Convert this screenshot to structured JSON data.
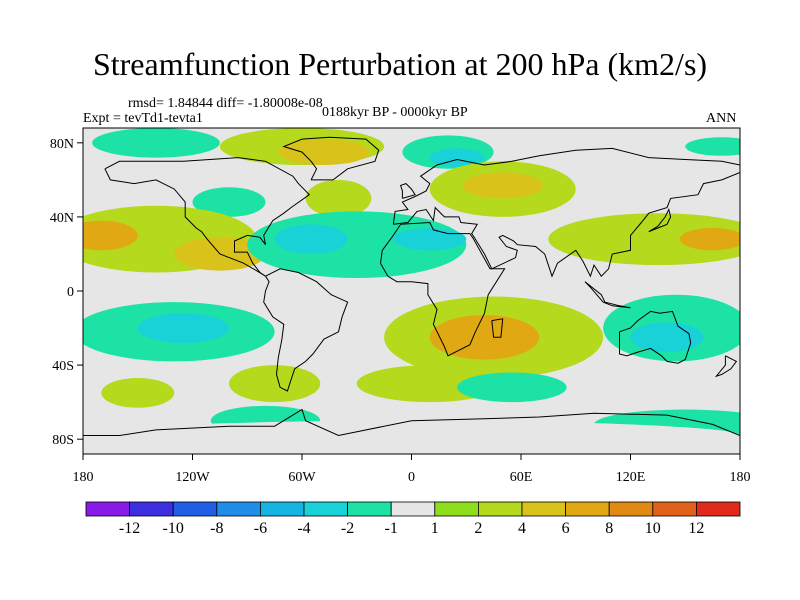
{
  "title": "Streamfunction Perturbation at 200 hPa (km2/s)",
  "stats_line": "rmsd= 1.84844 diff= -1.80008e-08",
  "experiment_line": "Expt = tevTd1-tevta1",
  "period_line": "0188kyr BP - 0000kyr BP",
  "season_label": "ANN",
  "lat_ticks": [
    {
      "label": "80N",
      "value": 80
    },
    {
      "label": "40N",
      "value": 40
    },
    {
      "label": "0",
      "value": 0
    },
    {
      "label": "40S",
      "value": -40
    },
    {
      "label": "80S",
      "value": -80
    }
  ],
  "lon_ticks": [
    {
      "label": "180",
      "value": -180
    },
    {
      "label": "120W",
      "value": -120
    },
    {
      "label": "60W",
      "value": -60
    },
    {
      "label": "0",
      "value": 0
    },
    {
      "label": "60E",
      "value": 60
    },
    {
      "label": "120E",
      "value": 120
    },
    {
      "label": "180",
      "value": 180
    }
  ],
  "colorbar": {
    "colors": [
      "#8a1ae6",
      "#3b2fe0",
      "#1e5fe6",
      "#1e8ee8",
      "#15b4e2",
      "#19d2d8",
      "#1de2a6",
      "#e6e6e6",
      "#8fde1d",
      "#b5d91c",
      "#d9c21a",
      "#e0a914",
      "#e08a14",
      "#e0621a",
      "#e02a1a"
    ],
    "labels": [
      "-12",
      "-10",
      "-8",
      "-6",
      "-4",
      "-2",
      "-1",
      "1",
      "2",
      "4",
      "6",
      "8",
      "10",
      "12"
    ]
  },
  "map_field": {
    "background_value": 0,
    "blobs": [
      {
        "lon": -140,
        "lat": 80,
        "rlon": 35,
        "rlat": 8,
        "value": -2
      },
      {
        "lon": -60,
        "lat": 78,
        "rlon": 45,
        "rlat": 10,
        "value": 2
      },
      {
        "lon": -48,
        "lat": 75,
        "rlon": 25,
        "rlat": 7,
        "value": 4
      },
      {
        "lon": 20,
        "lat": 75,
        "rlon": 25,
        "rlat": 9,
        "value": -2
      },
      {
        "lon": 25,
        "lat": 72,
        "rlon": 15,
        "rlat": 5,
        "value": -4
      },
      {
        "lon": 50,
        "lat": 55,
        "rlon": 40,
        "rlat": 15,
        "value": 2
      },
      {
        "lon": 50,
        "lat": 57,
        "rlon": 22,
        "rlat": 7,
        "value": 4
      },
      {
        "lon": -40,
        "lat": 50,
        "rlon": 18,
        "rlat": 10,
        "value": 2
      },
      {
        "lon": -100,
        "lat": 48,
        "rlon": 20,
        "rlat": 8,
        "value": -2
      },
      {
        "lon": 170,
        "lat": 78,
        "rlon": 20,
        "rlat": 5,
        "value": -2
      },
      {
        "lon": -140,
        "lat": 28,
        "rlon": 55,
        "rlat": 18,
        "value": 2
      },
      {
        "lon": -170,
        "lat": 30,
        "rlon": 20,
        "rlat": 8,
        "value": 6
      },
      {
        "lon": -105,
        "lat": 20,
        "rlon": 25,
        "rlat": 9,
        "value": 4
      },
      {
        "lon": -30,
        "lat": 25,
        "rlon": 60,
        "rlat": 18,
        "value": -2
      },
      {
        "lon": -55,
        "lat": 28,
        "rlon": 20,
        "rlat": 8,
        "value": -4
      },
      {
        "lon": 10,
        "lat": 28,
        "rlon": 20,
        "rlat": 6,
        "value": -4
      },
      {
        "lon": 135,
        "lat": 28,
        "rlon": 60,
        "rlat": 14,
        "value": 2
      },
      {
        "lon": 165,
        "lat": 28,
        "rlon": 18,
        "rlat": 6,
        "value": 6
      },
      {
        "lon": -130,
        "lat": -22,
        "rlon": 55,
        "rlat": 16,
        "value": -2
      },
      {
        "lon": -125,
        "lat": -20,
        "rlon": 25,
        "rlat": 8,
        "value": -4
      },
      {
        "lon": -150,
        "lat": -55,
        "rlon": 20,
        "rlat": 8,
        "value": 2
      },
      {
        "lon": -75,
        "lat": -50,
        "rlon": 25,
        "rlat": 10,
        "value": 2
      },
      {
        "lon": -80,
        "lat": -70,
        "rlon": 30,
        "rlat": 8,
        "value": -2
      },
      {
        "lon": 45,
        "lat": -25,
        "rlon": 60,
        "rlat": 22,
        "value": 2
      },
      {
        "lon": 40,
        "lat": -25,
        "rlon": 30,
        "rlat": 12,
        "value": 6
      },
      {
        "lon": 10,
        "lat": -50,
        "rlon": 40,
        "rlat": 10,
        "value": 2
      },
      {
        "lon": 55,
        "lat": -52,
        "rlon": 30,
        "rlat": 8,
        "value": -2
      },
      {
        "lon": 145,
        "lat": -20,
        "rlon": 40,
        "rlat": 18,
        "value": -2
      },
      {
        "lon": 140,
        "lat": -25,
        "rlon": 20,
        "rlat": 8,
        "value": -4
      },
      {
        "lon": 150,
        "lat": -72,
        "rlon": 50,
        "rlat": 8,
        "value": -2
      },
      {
        "lon": 0,
        "lat": -78,
        "rlon": 180,
        "rlat": 8,
        "value": -1
      }
    ]
  }
}
